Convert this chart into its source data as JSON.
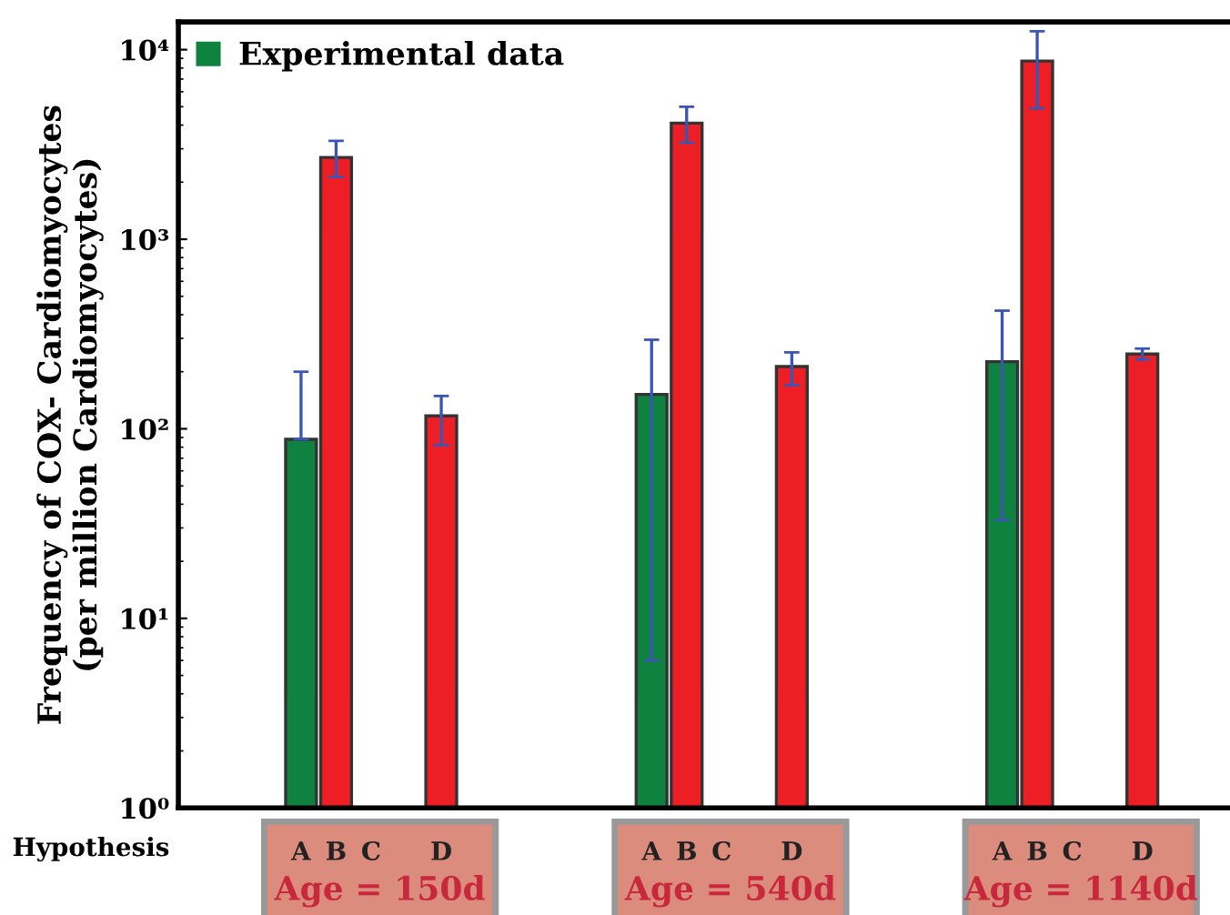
{
  "chart_data": {
    "type": "bar",
    "xlabel": "Hypothesis",
    "ylabel": "Frequency of COX- Cardiomyocytes\n(per million Cardiomyocytes)",
    "categories": [
      null,
      null,
      null,
      "A",
      "B",
      "C",
      null,
      "D",
      null,
      null,
      null,
      null,
      null,
      "A",
      "B",
      "C",
      null,
      "D",
      null,
      null,
      null,
      null,
      null,
      "A",
      "B",
      "C",
      null,
      "D",
      null,
      null
    ],
    "series": [
      {
        "name": "Experimental data",
        "color": "#0e823e",
        "values": [
          null,
          null,
          null,
          88,
          null,
          null,
          null,
          null,
          null,
          null,
          null,
          null,
          null,
          152,
          null,
          null,
          null,
          null,
          null,
          null,
          null,
          null,
          null,
          226,
          null,
          null,
          null,
          null,
          null,
          null
        ],
        "errors": [
          null,
          null,
          null,
          [
            88,
            200
          ],
          null,
          null,
          null,
          null,
          null,
          null,
          null,
          null,
          null,
          [
            6,
            295
          ],
          null,
          null,
          null,
          null,
          null,
          null,
          null,
          null,
          null,
          [
            33,
            420
          ],
          null,
          null,
          null,
          null,
          null,
          null
        ]
      },
      {
        "color": "#ee1f24",
        "values": [
          null,
          null,
          null,
          null,
          2700,
          null,
          null,
          117,
          null,
          null,
          null,
          null,
          null,
          null,
          4100,
          null,
          null,
          213,
          null,
          null,
          null,
          null,
          null,
          null,
          8700,
          null,
          null,
          248,
          null,
          null
        ],
        "errors": [
          null,
          null,
          null,
          null,
          [
            2130,
            3300
          ],
          null,
          null,
          [
            82,
            149
          ],
          null,
          null,
          null,
          null,
          null,
          null,
          [
            3230,
            5000
          ],
          null,
          null,
          [
            170,
            253
          ],
          null,
          null,
          null,
          null,
          null,
          null,
          [
            4900,
            12500
          ],
          null,
          null,
          [
            232,
            265
          ],
          null,
          null
        ]
      }
    ],
    "annotations": [
      "Age = 150d",
      "Age = 540d",
      "Age = 1140d"
    ],
    "log": "y",
    "ylim": [
      1,
      14000
    ],
    "yticks": [
      {
        "value": 1,
        "label": "10⁰"
      },
      {
        "value": 10,
        "label": "10¹"
      },
      {
        "value": 100,
        "label": "10²"
      },
      {
        "value": 1000,
        "label": "10³"
      },
      {
        "value": 10000,
        "label": "10⁴"
      }
    ],
    "grid": false,
    "legend": "top left"
  }
}
